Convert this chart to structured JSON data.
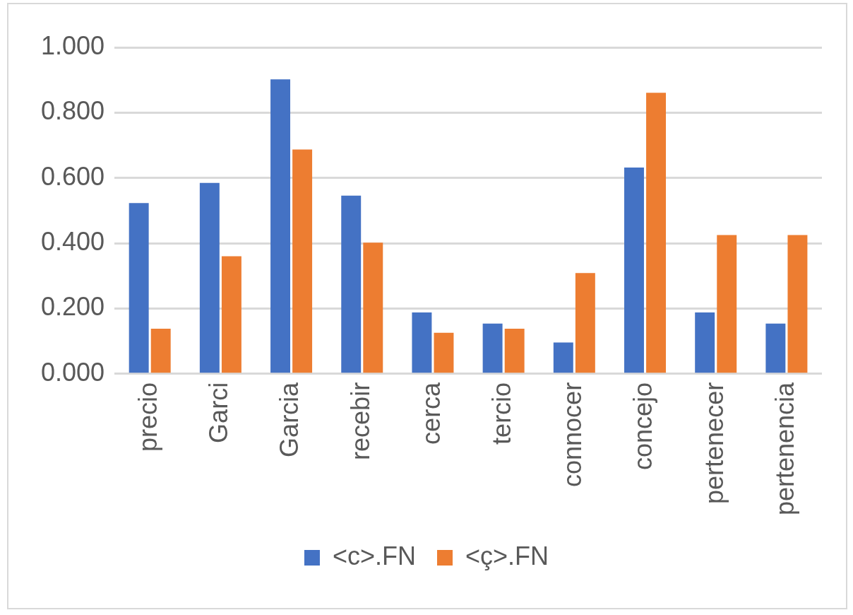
{
  "chart_data": {
    "type": "bar",
    "categories": [
      "precio",
      "Garci",
      "Garcia",
      "recebir",
      "cerca",
      "tercio",
      "connocer",
      "concejo",
      "pertenecer",
      "pertenencia"
    ],
    "series": [
      {
        "name": "<c>.FN",
        "color": "#4472c4",
        "values": [
          0.523,
          0.585,
          0.902,
          0.546,
          0.188,
          0.154,
          0.096,
          0.632,
          0.188,
          0.154
        ]
      },
      {
        "name": "<ç>.FN",
        "color": "#ed7d31",
        "values": [
          0.138,
          0.36,
          0.687,
          0.402,
          0.126,
          0.138,
          0.309,
          0.861,
          0.425,
          0.425
        ]
      }
    ],
    "ylim": [
      0,
      1
    ],
    "yticks": [
      {
        "value": 0,
        "label": "0.000"
      },
      {
        "value": 0.2,
        "label": "0.200"
      },
      {
        "value": 0.4,
        "label": "0.400"
      },
      {
        "value": 0.6,
        "label": "0.600"
      },
      {
        "value": 0.8,
        "label": "0.800"
      },
      {
        "value": 1,
        "label": "1.000"
      }
    ],
    "grid": "y",
    "legend": "bottom"
  }
}
